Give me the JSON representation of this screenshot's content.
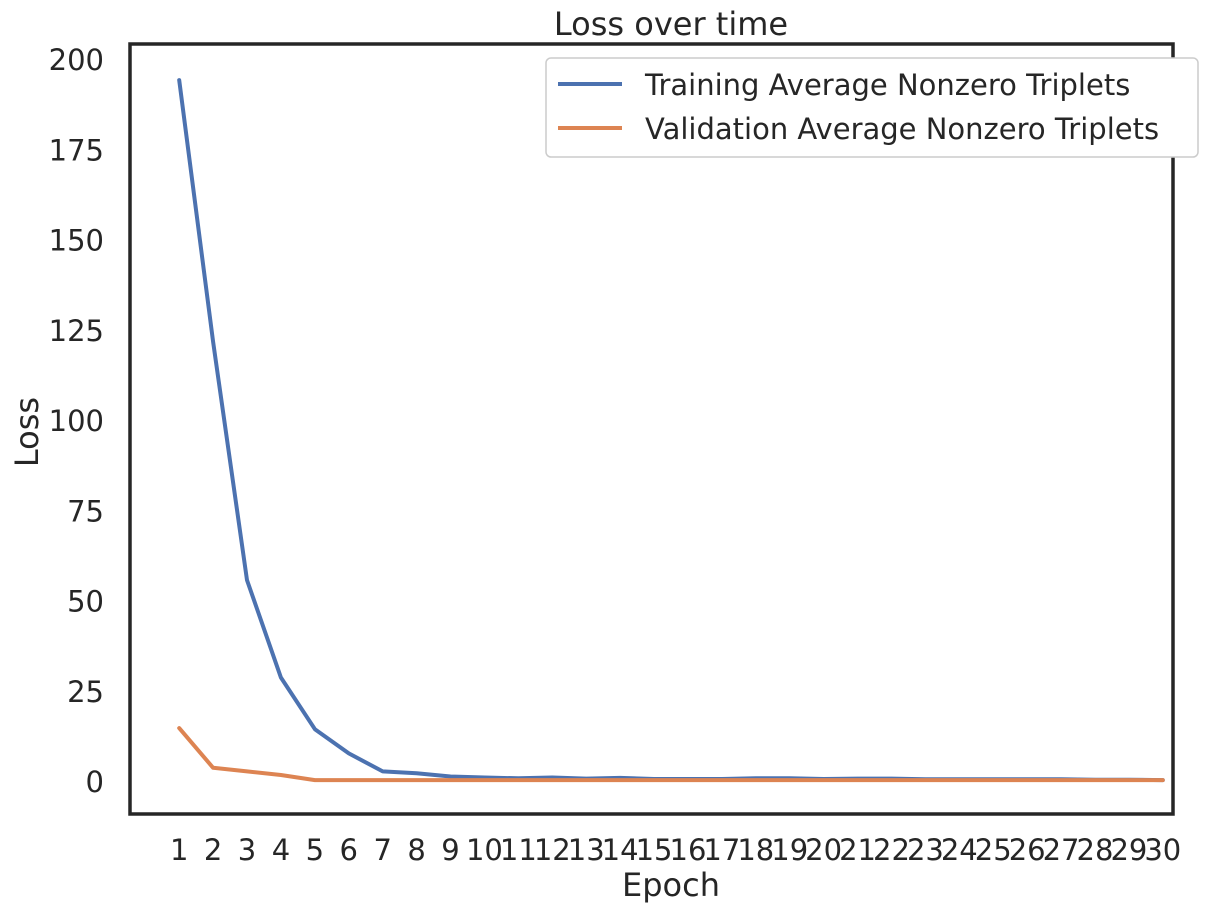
{
  "chart_data": {
    "type": "line",
    "title": "Loss over time",
    "xlabel": "Epoch",
    "ylabel": "Loss",
    "x": [
      1,
      2,
      3,
      4,
      5,
      6,
      7,
      8,
      9,
      10,
      11,
      12,
      13,
      14,
      15,
      16,
      17,
      18,
      19,
      20,
      21,
      22,
      23,
      24,
      25,
      26,
      27,
      28,
      29,
      30
    ],
    "xticks": [
      "1",
      "2",
      "3",
      "4",
      "5",
      "6",
      "7",
      "8",
      "9",
      "10",
      "11",
      "12",
      "13",
      "14",
      "15",
      "16",
      "17",
      "18",
      "19",
      "20",
      "21",
      "22",
      "23",
      "24",
      "25",
      "26",
      "27",
      "28",
      "29",
      "30"
    ],
    "yticks": [
      0,
      25,
      50,
      75,
      100,
      125,
      150,
      175,
      200
    ],
    "ylim": [
      -8.8,
      204.5
    ],
    "xlim": [
      -0.45,
      30.3
    ],
    "grid": false,
    "legend_position": "top-right",
    "series": [
      {
        "name": "Training Average Nonzero Triplets",
        "color": "#4c72b0",
        "values": [
          194.5,
          122,
          56,
          29,
          14.7,
          8,
          3,
          2.5,
          1.6,
          1.3,
          1.1,
          1.3,
          1.0,
          1.2,
          0.9,
          0.9,
          0.9,
          1.1,
          1.1,
          0.9,
          1.0,
          1.0,
          0.8,
          0.8,
          0.8,
          0.8,
          0.8,
          0.7,
          0.7,
          0.6
        ]
      },
      {
        "name": "Validation Average Nonzero Triplets",
        "color": "#dd8452",
        "values": [
          15,
          4,
          3,
          2,
          0.6,
          0.6,
          0.6,
          0.6,
          0.6,
          0.6,
          0.6,
          0.6,
          0.6,
          0.6,
          0.6,
          0.6,
          0.6,
          0.6,
          0.6,
          0.6,
          0.6,
          0.6,
          0.6,
          0.6,
          0.6,
          0.6,
          0.6,
          0.6,
          0.6,
          0.6
        ]
      }
    ]
  }
}
